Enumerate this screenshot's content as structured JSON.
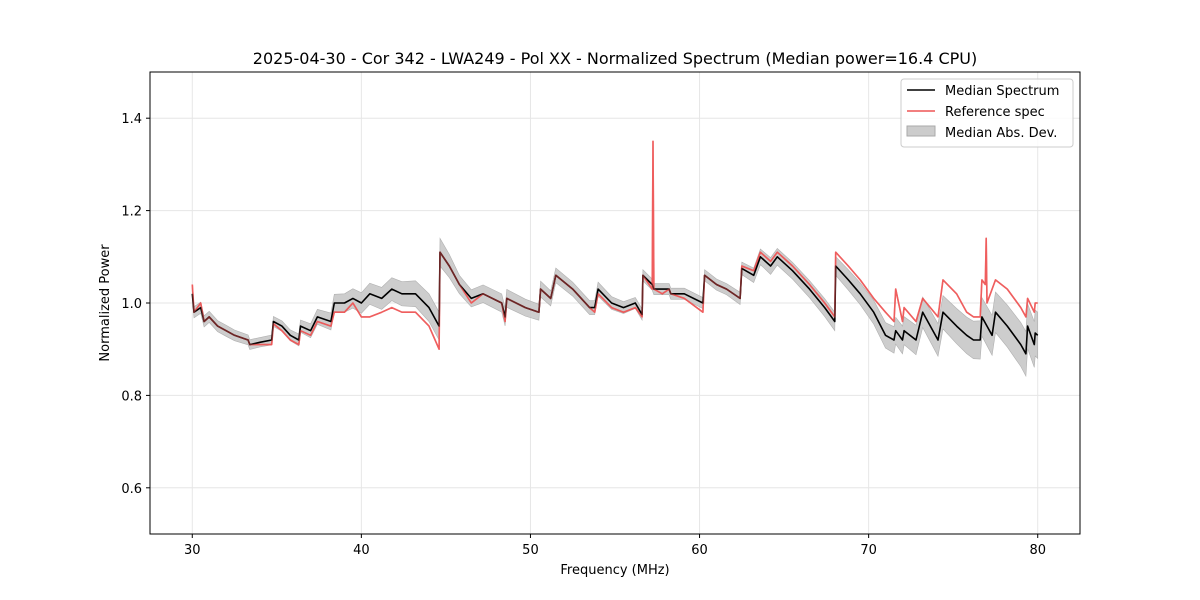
{
  "chart_data": {
    "type": "line",
    "title": "2025-04-30 - Cor 342 - LWA249 - Pol XX - Normalized Spectrum (Median power=16.4 CPU)",
    "xlabel": "Frequency (MHz)",
    "ylabel": "Normalized Power",
    "xlim": [
      27.5,
      82.5
    ],
    "ylim": [
      0.5,
      1.5
    ],
    "xticks": [
      30,
      40,
      50,
      60,
      70,
      80
    ],
    "yticks": [
      0.6,
      0.8,
      1.0,
      1.2,
      1.4
    ],
    "xtick_labels": [
      "30",
      "40",
      "50",
      "60",
      "70",
      "80"
    ],
    "ytick_labels": [
      "0.6",
      "0.8",
      "1.0",
      "1.2",
      "1.4"
    ],
    "grid": true,
    "legend_position": "top-right",
    "legend": [
      "Median Spectrum",
      "Reference spec",
      "Median Abs. Dev."
    ],
    "series": [
      {
        "name": "Median Spectrum",
        "color": "#000000",
        "points": [
          [
            30.0,
            1.02
          ],
          [
            30.1,
            0.98
          ],
          [
            30.5,
            0.99
          ],
          [
            30.7,
            0.96
          ],
          [
            31.0,
            0.97
          ],
          [
            31.5,
            0.95
          ],
          [
            32.0,
            0.94
          ],
          [
            32.5,
            0.93
          ],
          [
            33.3,
            0.92
          ],
          [
            33.4,
            0.91
          ],
          [
            34.0,
            0.915
          ],
          [
            34.7,
            0.92
          ],
          [
            34.8,
            0.96
          ],
          [
            35.3,
            0.95
          ],
          [
            35.8,
            0.93
          ],
          [
            36.3,
            0.92
          ],
          [
            36.4,
            0.95
          ],
          [
            37.0,
            0.94
          ],
          [
            37.4,
            0.97
          ],
          [
            38.2,
            0.96
          ],
          [
            38.4,
            1.0
          ],
          [
            39.0,
            1.0
          ],
          [
            39.5,
            1.01
          ],
          [
            40.0,
            1.0
          ],
          [
            40.5,
            1.02
          ],
          [
            41.2,
            1.01
          ],
          [
            41.8,
            1.03
          ],
          [
            42.4,
            1.02
          ],
          [
            43.2,
            1.02
          ],
          [
            44.0,
            0.99
          ],
          [
            44.6,
            0.95
          ],
          [
            44.65,
            1.11
          ],
          [
            45.2,
            1.08
          ],
          [
            45.8,
            1.04
          ],
          [
            46.5,
            1.01
          ],
          [
            47.2,
            1.02
          ],
          [
            48.3,
            1.0
          ],
          [
            48.5,
            0.97
          ],
          [
            48.6,
            1.01
          ],
          [
            49.7,
            0.99
          ],
          [
            50.5,
            0.98
          ],
          [
            50.6,
            1.03
          ],
          [
            51.2,
            1.01
          ],
          [
            51.5,
            1.06
          ],
          [
            52.5,
            1.03
          ],
          [
            53.5,
            0.99
          ],
          [
            53.8,
            0.99
          ],
          [
            54.0,
            1.03
          ],
          [
            54.8,
            1.0
          ],
          [
            55.5,
            0.99
          ],
          [
            56.2,
            1.0
          ],
          [
            56.6,
            0.975
          ],
          [
            56.65,
            1.06
          ],
          [
            57.2,
            1.04
          ],
          [
            57.3,
            1.03
          ],
          [
            57.8,
            1.03
          ],
          [
            58.2,
            1.03
          ],
          [
            58.3,
            1.02
          ],
          [
            59.1,
            1.02
          ],
          [
            60.2,
            1.0
          ],
          [
            60.3,
            1.06
          ],
          [
            61.0,
            1.04
          ],
          [
            61.6,
            1.03
          ],
          [
            62.4,
            1.01
          ],
          [
            62.5,
            1.075
          ],
          [
            63.2,
            1.06
          ],
          [
            63.6,
            1.1
          ],
          [
            64.2,
            1.08
          ],
          [
            64.6,
            1.1
          ],
          [
            65.5,
            1.07
          ],
          [
            66.5,
            1.03
          ],
          [
            67.4,
            0.99
          ],
          [
            68.0,
            0.96
          ],
          [
            68.05,
            1.08
          ],
          [
            68.8,
            1.05
          ],
          [
            69.5,
            1.02
          ],
          [
            70.3,
            0.98
          ],
          [
            71.0,
            0.93
          ],
          [
            71.5,
            0.92
          ],
          [
            71.6,
            0.94
          ],
          [
            72.0,
            0.92
          ],
          [
            72.1,
            0.94
          ],
          [
            72.8,
            0.92
          ],
          [
            73.2,
            0.98
          ],
          [
            74.1,
            0.92
          ],
          [
            74.4,
            0.98
          ],
          [
            75.2,
            0.95
          ],
          [
            75.8,
            0.93
          ],
          [
            76.2,
            0.92
          ],
          [
            76.6,
            0.92
          ],
          [
            76.7,
            0.97
          ],
          [
            77.0,
            0.95
          ],
          [
            77.3,
            0.93
          ],
          [
            77.5,
            0.98
          ],
          [
            78.2,
            0.95
          ],
          [
            79.0,
            0.91
          ],
          [
            79.3,
            0.89
          ],
          [
            79.4,
            0.95
          ],
          [
            79.8,
            0.91
          ],
          [
            79.85,
            0.935
          ],
          [
            80.0,
            0.93
          ]
        ]
      },
      {
        "name": "Reference spec",
        "color": "#ee5555",
        "points": [
          [
            30.0,
            1.04
          ],
          [
            30.1,
            0.98
          ],
          [
            30.5,
            1.0
          ],
          [
            30.7,
            0.96
          ],
          [
            31.0,
            0.97
          ],
          [
            31.5,
            0.95
          ],
          [
            32.0,
            0.94
          ],
          [
            32.5,
            0.93
          ],
          [
            33.3,
            0.92
          ],
          [
            33.4,
            0.91
          ],
          [
            34.0,
            0.91
          ],
          [
            34.7,
            0.91
          ],
          [
            34.8,
            0.955
          ],
          [
            35.3,
            0.94
          ],
          [
            35.8,
            0.92
          ],
          [
            36.3,
            0.91
          ],
          [
            36.4,
            0.94
          ],
          [
            37.0,
            0.93
          ],
          [
            37.4,
            0.96
          ],
          [
            38.2,
            0.95
          ],
          [
            38.4,
            0.98
          ],
          [
            39.0,
            0.98
          ],
          [
            39.5,
            1.0
          ],
          [
            40.0,
            0.97
          ],
          [
            40.5,
            0.97
          ],
          [
            41.2,
            0.98
          ],
          [
            41.8,
            0.99
          ],
          [
            42.4,
            0.98
          ],
          [
            43.2,
            0.98
          ],
          [
            44.0,
            0.95
          ],
          [
            44.6,
            0.9
          ],
          [
            44.65,
            1.11
          ],
          [
            45.2,
            1.08
          ],
          [
            45.8,
            1.04
          ],
          [
            46.5,
            1.0
          ],
          [
            47.2,
            1.02
          ],
          [
            48.3,
            1.0
          ],
          [
            48.5,
            0.96
          ],
          [
            48.6,
            1.01
          ],
          [
            49.7,
            0.99
          ],
          [
            50.5,
            0.98
          ],
          [
            50.6,
            1.03
          ],
          [
            51.2,
            1.01
          ],
          [
            51.5,
            1.06
          ],
          [
            52.5,
            1.03
          ],
          [
            53.5,
            0.99
          ],
          [
            53.8,
            0.98
          ],
          [
            54.0,
            1.02
          ],
          [
            54.8,
            0.99
          ],
          [
            55.5,
            0.98
          ],
          [
            56.2,
            0.99
          ],
          [
            56.6,
            0.97
          ],
          [
            56.65,
            1.06
          ],
          [
            57.2,
            1.03
          ],
          [
            57.25,
            1.35
          ],
          [
            57.3,
            1.03
          ],
          [
            57.8,
            1.02
          ],
          [
            58.2,
            1.03
          ],
          [
            58.3,
            1.02
          ],
          [
            59.1,
            1.01
          ],
          [
            60.2,
            0.98
          ],
          [
            60.3,
            1.06
          ],
          [
            61.0,
            1.04
          ],
          [
            61.6,
            1.03
          ],
          [
            62.4,
            1.01
          ],
          [
            62.5,
            1.08
          ],
          [
            63.2,
            1.07
          ],
          [
            63.6,
            1.11
          ],
          [
            64.2,
            1.09
          ],
          [
            64.6,
            1.11
          ],
          [
            65.5,
            1.08
          ],
          [
            66.5,
            1.04
          ],
          [
            67.4,
            1.0
          ],
          [
            68.0,
            0.97
          ],
          [
            68.05,
            1.11
          ],
          [
            68.8,
            1.08
          ],
          [
            69.5,
            1.05
          ],
          [
            70.3,
            1.01
          ],
          [
            71.0,
            0.98
          ],
          [
            71.5,
            0.96
          ],
          [
            71.6,
            1.03
          ],
          [
            72.0,
            0.96
          ],
          [
            72.1,
            0.99
          ],
          [
            72.8,
            0.96
          ],
          [
            73.2,
            1.01
          ],
          [
            74.1,
            0.97
          ],
          [
            74.4,
            1.05
          ],
          [
            75.2,
            1.02
          ],
          [
            75.8,
            0.98
          ],
          [
            76.2,
            0.97
          ],
          [
            76.6,
            0.97
          ],
          [
            76.7,
            1.05
          ],
          [
            76.9,
            1.04
          ],
          [
            76.95,
            1.14
          ],
          [
            77.0,
            1.0
          ],
          [
            77.3,
            1.03
          ],
          [
            77.5,
            1.05
          ],
          [
            78.2,
            1.03
          ],
          [
            79.0,
            0.99
          ],
          [
            79.3,
            0.97
          ],
          [
            79.4,
            1.01
          ],
          [
            79.8,
            0.98
          ],
          [
            79.85,
            1.0
          ],
          [
            80.0,
            1.0
          ]
        ]
      }
    ],
    "band": {
      "name": "Median Abs. Dev.",
      "color": "#bbbbbb",
      "x": [
        30.0,
        32.0,
        34.0,
        36.0,
        38.0,
        40.0,
        42.0,
        44.0,
        44.65,
        46.0,
        48.0,
        50.0,
        52.0,
        54.0,
        56.0,
        58.0,
        60.0,
        62.0,
        64.0,
        66.0,
        68.0,
        70.0,
        72.0,
        74.0,
        76.0,
        78.0,
        80.0
      ],
      "half_width": [
        0.012,
        0.012,
        0.01,
        0.012,
        0.018,
        0.022,
        0.025,
        0.03,
        0.03,
        0.018,
        0.02,
        0.018,
        0.015,
        0.015,
        0.012,
        0.012,
        0.012,
        0.012,
        0.018,
        0.018,
        0.02,
        0.025,
        0.03,
        0.035,
        0.04,
        0.045,
        0.05
      ]
    }
  }
}
